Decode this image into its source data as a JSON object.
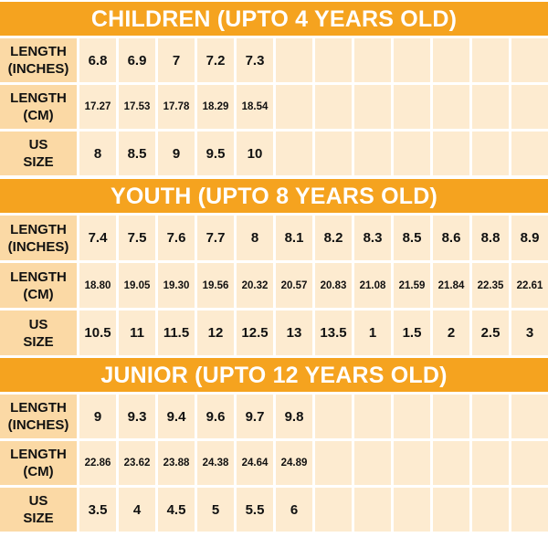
{
  "colors": {
    "header": "#f5a31f",
    "label_cell": "#fbd9a5",
    "value_cell": "#fdebd0"
  },
  "row_labels": {
    "inches": [
      "LENGTH",
      "(INCHES)"
    ],
    "cm": [
      "LENGTH",
      "(CM)"
    ],
    "us": [
      "US",
      "SIZE"
    ]
  },
  "sections": [
    {
      "title": "CHILDREN (UPTO 4 YEARS OLD)",
      "inches": [
        "6.8",
        "6.9",
        "7",
        "7.2",
        "7.3"
      ],
      "cm": [
        "17.27",
        "17.53",
        "17.78",
        "18.29",
        "18.54"
      ],
      "us": [
        "8",
        "8.5",
        "9",
        "9.5",
        "10"
      ]
    },
    {
      "title": "YOUTH (UPTO 8 YEARS OLD)",
      "inches": [
        "7.4",
        "7.5",
        "7.6",
        "7.7",
        "8",
        "8.1",
        "8.2",
        "8.3",
        "8.5",
        "8.6",
        "8.8",
        "8.9"
      ],
      "cm": [
        "18.80",
        "19.05",
        "19.30",
        "19.56",
        "20.32",
        "20.57",
        "20.83",
        "21.08",
        "21.59",
        "21.84",
        "22.35",
        "22.61"
      ],
      "us": [
        "10.5",
        "11",
        "11.5",
        "12",
        "12.5",
        "13",
        "13.5",
        "1",
        "1.5",
        "2",
        "2.5",
        "3"
      ]
    },
    {
      "title": "JUNIOR (UPTO 12 YEARS OLD)",
      "inches": [
        "9",
        "9.3",
        "9.4",
        "9.6",
        "9.7",
        "9.8"
      ],
      "cm": [
        "22.86",
        "23.62",
        "23.88",
        "24.38",
        "24.64",
        "24.89"
      ],
      "us": [
        "3.5",
        "4",
        "4.5",
        "5",
        "5.5",
        "6"
      ]
    }
  ]
}
